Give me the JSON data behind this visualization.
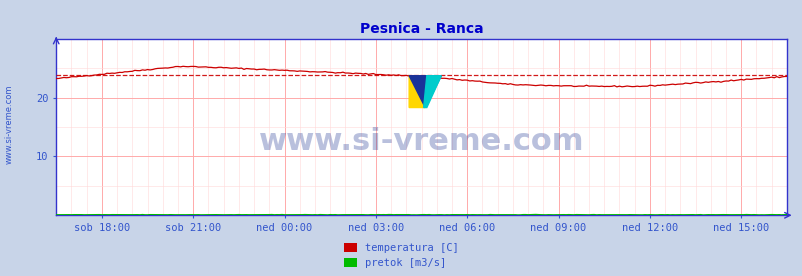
{
  "title": "Pesnica - Ranca",
  "title_color": "#0000cc",
  "title_fontsize": 10,
  "bg_color": "#c8d4e8",
  "plot_bg_color": "#ffffff",
  "xlim": [
    0,
    288
  ],
  "ylim": [
    0,
    30
  ],
  "yticks": [
    10,
    20
  ],
  "xtick_labels": [
    "sob 18:00",
    "sob 21:00",
    "ned 00:00",
    "ned 03:00",
    "ned 06:00",
    "ned 09:00",
    "ned 12:00",
    "ned 15:00"
  ],
  "xtick_positions": [
    18,
    54,
    90,
    126,
    162,
    198,
    234,
    270
  ],
  "grid_color_major": "#ffaaaa",
  "grid_color_minor": "#ffd8d8",
  "avg_line_value": 23.8,
  "avg_line_color": "#cc0000",
  "temp_color": "#cc0000",
  "pretok_color": "#00bb00",
  "watermark_text": "www.si-vreme.com",
  "watermark_color": "#1a3090",
  "watermark_alpha": 0.3,
  "watermark_fontsize": 22,
  "ylabel_text": "www.si-vreme.com",
  "ylabel_color": "#3355cc",
  "ylabel_fontsize": 6,
  "legend_labels": [
    "temperatura [C]",
    "pretok [m3/s]"
  ],
  "legend_colors": [
    "#cc0000",
    "#00bb00"
  ],
  "axis_color": "#3333cc",
  "tick_label_color": "#3355cc",
  "tick_fontsize": 7.5
}
